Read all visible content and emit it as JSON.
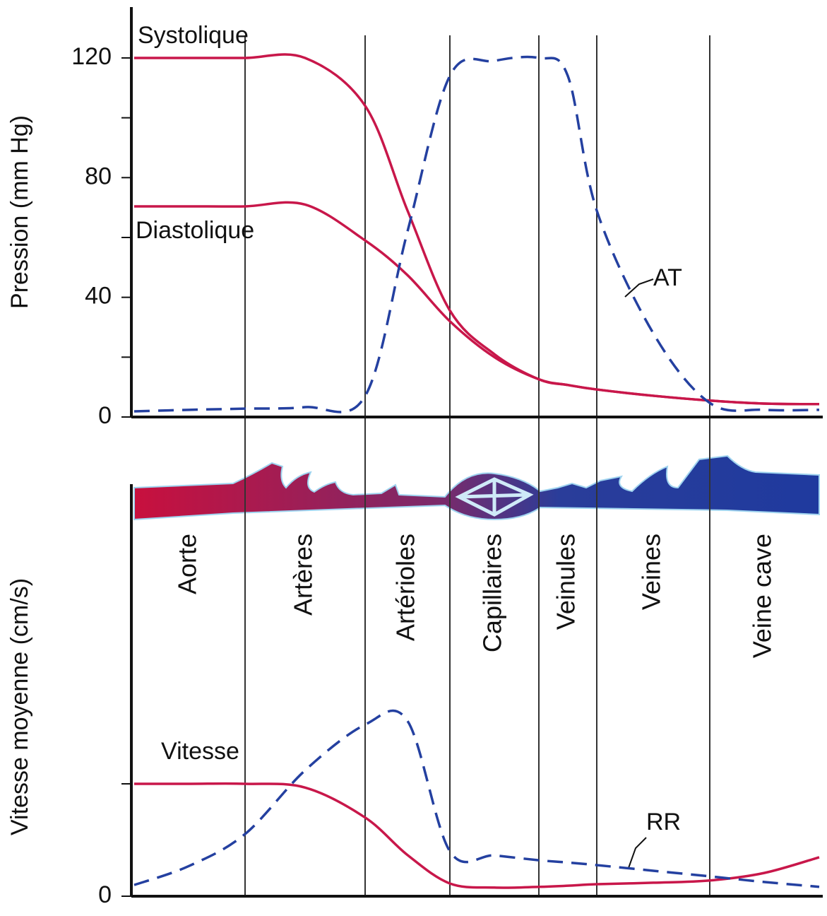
{
  "chart_data": [
    {
      "type": "line",
      "ylabel": "Pression (mm Hg)",
      "categories": [
        null,
        "Aorte",
        null,
        "Artères",
        null,
        "Artérioles",
        null,
        "Capillaires",
        null,
        "Veinules",
        null,
        "Veines",
        null,
        "Veine cave",
        null
      ],
      "ylim": [
        0,
        137
      ],
      "yticks": [
        0,
        40,
        80,
        120
      ],
      "minor_yticks": [
        20,
        60,
        100
      ],
      "series": [
        {
          "name": "Systolique",
          "color": "#c8174a",
          "dashed": false,
          "values": [
            120,
            120,
            120,
            120,
            104,
            69,
            35.6,
            21,
            12.6,
            10.7,
            9.2,
            7.1,
            5.5,
            4.5,
            4.3
          ]
        },
        {
          "name": "Diastolique",
          "color": "#c8174a",
          "dashed": false,
          "values": [
            70.4,
            70.4,
            70.4,
            71,
            59,
            47.4,
            32,
            20,
            12.6,
            10.7,
            9.2,
            7.1,
            5.5,
            4.5,
            4.3
          ]
        },
        {
          "name": "AT",
          "color": "#2440a0",
          "dashed": true,
          "values": [
            1.9,
            2.4,
            2.8,
            3.3,
            7,
            62,
            114,
            119,
            120,
            114,
            69,
            28,
            4.7,
            2.4,
            2.4
          ]
        }
      ]
    },
    {
      "type": "line",
      "ylabel": "Vitesse moyenne (cm/s)",
      "categories": [
        null,
        null,
        null,
        null,
        null,
        null,
        null,
        null,
        null,
        null,
        null,
        null,
        null,
        null,
        null
      ],
      "ylim": [
        0,
        11
      ],
      "yticks": [
        0
      ],
      "minor_yticks": [
        3
      ],
      "series": [
        {
          "name": "Vitesse",
          "color": "#c8174a",
          "dashed": false,
          "values": [
            3.0,
            3.0,
            3.0,
            2.9,
            2.1,
            1.1,
            0.34,
            0.23,
            0.25,
            0.28,
            0.32,
            0.36,
            0.42,
            0.62,
            1.04
          ]
        },
        {
          "name": "RR",
          "color": "#2440a0",
          "dashed": true,
          "values": [
            0.3,
            0.81,
            1.66,
            3.36,
            4.58,
            4.68,
            1.2,
            1.09,
            0.96,
            0.9,
            0.83,
            0.68,
            0.53,
            0.38,
            0.25
          ]
        }
      ]
    }
  ]
}
